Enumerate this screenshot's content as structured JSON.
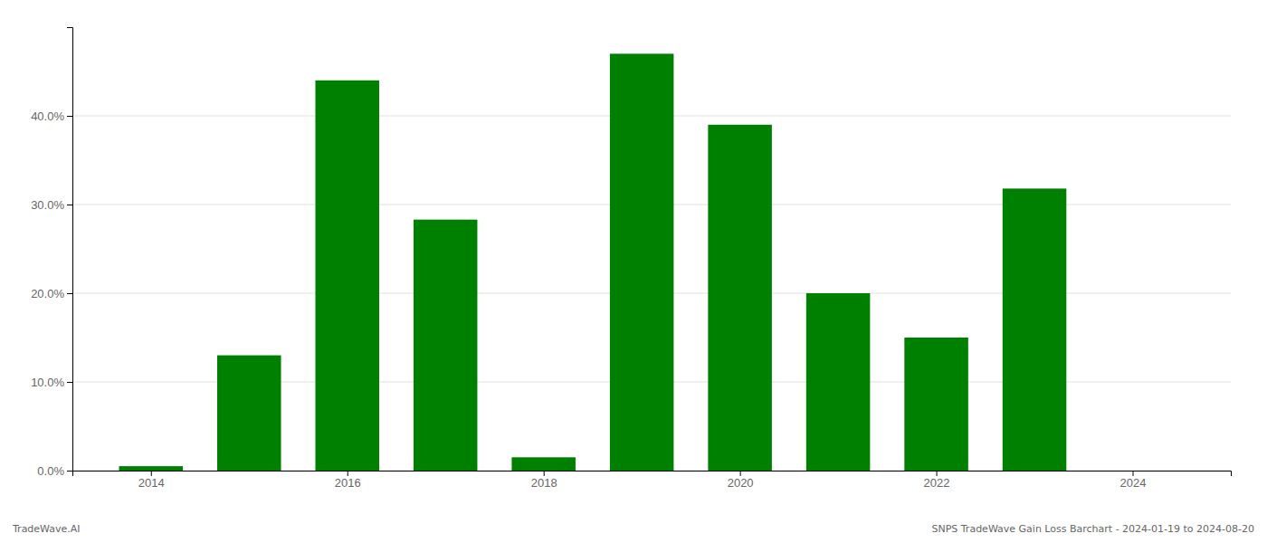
{
  "chart_data": {
    "type": "bar",
    "x": [
      2014,
      2015,
      2016,
      2017,
      2018,
      2019,
      2020,
      2021,
      2022,
      2023,
      2024
    ],
    "values": [
      0.005,
      0.13,
      0.44,
      0.283,
      0.015,
      0.47,
      0.39,
      0.2,
      0.15,
      0.318,
      0.0
    ],
    "color": "#008000",
    "xlim": [
      2013.2,
      2025.0
    ],
    "xticks": [
      2014,
      2016,
      2018,
      2020,
      2022,
      2024
    ],
    "ylim": [
      0,
      0.5
    ],
    "yticks": [
      {
        "value": 0,
        "label": "0.0%"
      },
      {
        "value": 0.1,
        "label": "10.0%"
      },
      {
        "value": 0.2,
        "label": "20.0%"
      },
      {
        "value": 0.3,
        "label": "30.0%"
      },
      {
        "value": 0.4,
        "label": "40.0%"
      }
    ],
    "grid": true,
    "annotations": [
      "TradeWave.AI",
      "SNPS TradeWave Gain Loss Barchart - 2024-01-19 to 2024-08-20"
    ]
  }
}
